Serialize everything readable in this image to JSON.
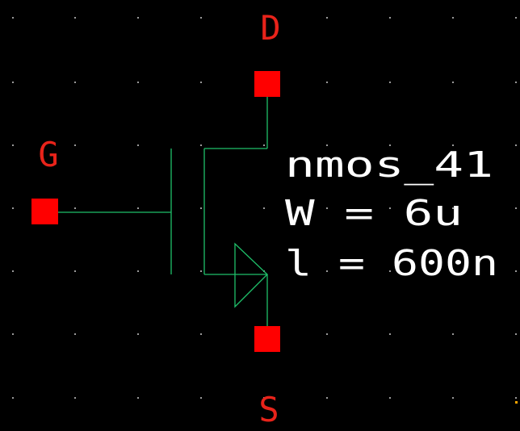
{
  "schematic": {
    "pins": {
      "drain": "D",
      "gate": "G",
      "source": "S"
    },
    "instance": {
      "name": "nmos_41",
      "width": "W = 6u",
      "length": "l = 600n"
    }
  },
  "colors": {
    "background": "#000000",
    "wire": "#1fc06a",
    "pin": "#ff0000",
    "pin_label": "#e8231a",
    "property_text": "#ffffff",
    "grid_dot": "#9a9a9a",
    "grid_dot_accent": "#ffa500"
  }
}
